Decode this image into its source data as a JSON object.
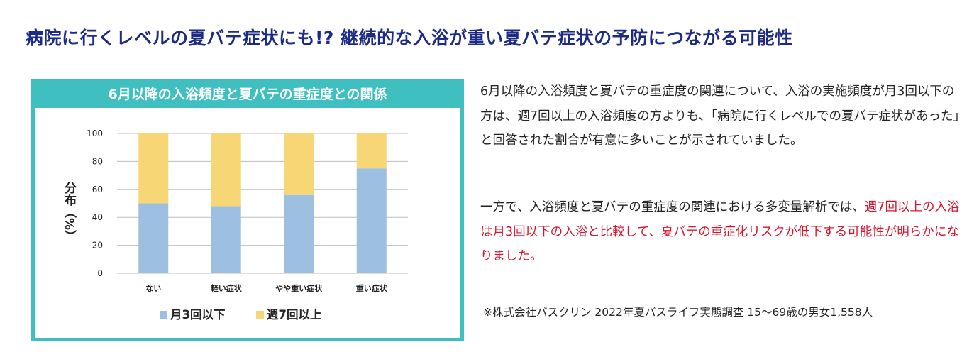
{
  "headline": "病院に行くレベルの夏バテ症状にも!? 継続的な入浴が重い夏バテ症状の予防につながる可能性",
  "chart_title": "6月以降の入浴頻度と夏バテの重症度との関係",
  "body": {
    "para1": "6月以降の入浴頻度と夏バテの重症度の関連について、入浴の実施頻度が月3回以下の方は、週7回以上の入浴頻度の方よりも、「病院に行くレベルでの夏バテ症状があった」と回答された割合が有意に多いことが示されていました。",
    "para2_plain": "一方で、入浴頻度と夏バテの重症度の関連における多変量解析では、",
    "para2_red": "週7回以上の入浴は月3回以下の入浴と比較して、夏バテの重症化リスクが低下する可能性が明らかになりました。"
  },
  "footnote": "※株式会社バスクリン 2022年夏バスライフ実態調査 15〜69歳の男女1,558人",
  "colors": {
    "series1": "#9dc0e2",
    "series2": "#f7d675",
    "accent": "#3fbfbf",
    "headline": "#1d2b86",
    "red": "#d9142b"
  },
  "chart_data": {
    "type": "bar",
    "stacked": true,
    "categories": [
      "ない",
      "軽い症状",
      "やや重い症状",
      "重い症状"
    ],
    "series": [
      {
        "name": "月3回以下",
        "values": [
          50,
          48,
          56,
          75
        ]
      },
      {
        "name": "週7回以上",
        "values": [
          50,
          52,
          44,
          25
        ]
      }
    ],
    "ylabel": "分布（%）",
    "ylim": [
      0,
      100
    ],
    "yticks": [
      0,
      20,
      40,
      60,
      80,
      100
    ],
    "grid": true,
    "legend": "bottom"
  }
}
